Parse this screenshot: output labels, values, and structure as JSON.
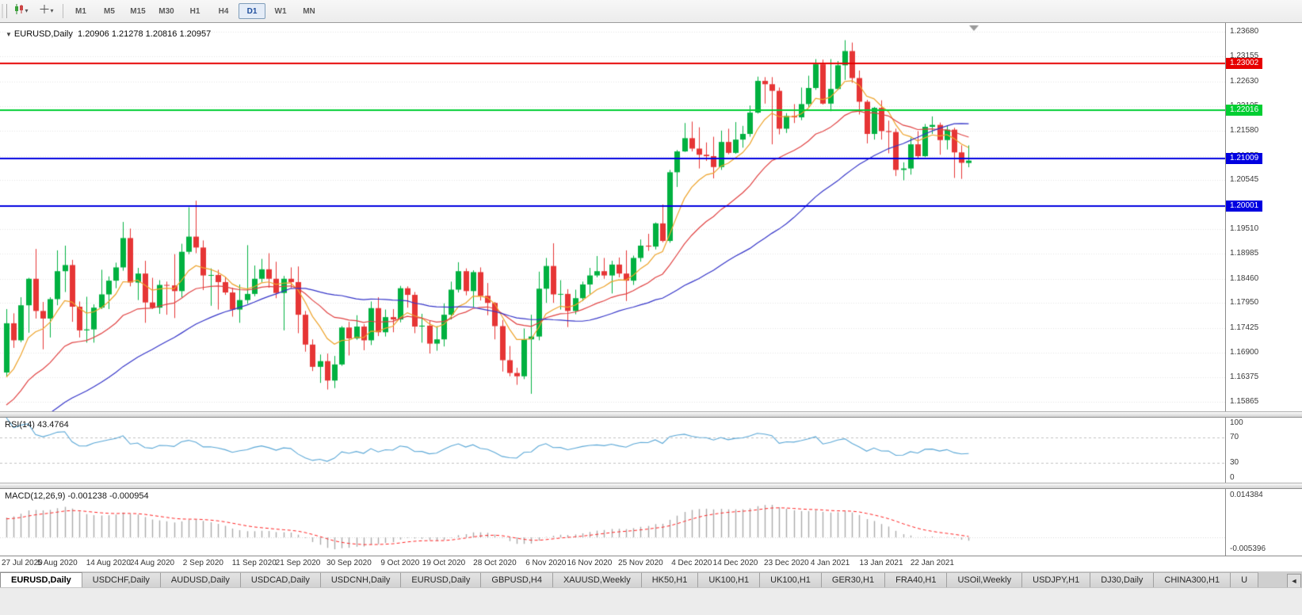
{
  "icons": {
    "title_marker": "▼",
    "dropdown_caret": "▾",
    "tab_scroll_left": "◄"
  },
  "toolbar": {
    "timeframes": [
      "M1",
      "M5",
      "M15",
      "M30",
      "H1",
      "H4",
      "D1",
      "W1",
      "MN"
    ],
    "active_timeframe": "D1"
  },
  "chart": {
    "title_symbol": "EURUSD,Daily",
    "title_ohlc": "1.20906 1.21278 1.20816 1.20957"
  },
  "chart_data": {
    "type": "candlestick",
    "symbol": "EURUSD",
    "timeframe": "Daily",
    "ohlc_readout": {
      "open": "1.20906",
      "high": "1.21278",
      "low": "1.20816",
      "close": "1.20957"
    },
    "y_range": [
      1.1566,
      1.2383
    ],
    "y_axis_ticks": [
      1.2368,
      1.23155,
      1.2263,
      1.22105,
      1.2158,
      1.21055,
      1.20545,
      1.2002,
      1.1951,
      1.18985,
      1.1846,
      1.1795,
      1.17425,
      1.169,
      1.16375,
      1.15865
    ],
    "x_tick_labels": [
      "27 Jul 2020",
      "5 Aug 2020",
      "14 Aug 2020",
      "24 Aug 2020",
      "2 Sep 2020",
      "11 Sep 2020",
      "21 Sep 2020",
      "30 Sep 2020",
      "9 Oct 2020",
      "19 Oct 2020",
      "28 Oct 2020",
      "6 Nov 2020",
      "16 Nov 2020",
      "25 Nov 2020",
      "4 Dec 2020",
      "14 Dec 2020",
      "23 Dec 2020",
      "4 Jan 2021",
      "13 Jan 2021",
      "22 Jan 2021"
    ],
    "x_tick_indices": [
      0,
      7,
      14,
      20,
      27,
      34,
      40,
      47,
      54,
      60,
      67,
      74,
      80,
      87,
      94,
      100,
      107,
      113,
      120,
      127
    ],
    "hlines": [
      {
        "price": 1.23002,
        "color": "#e60000"
      },
      {
        "price": 1.22016,
        "color": "#00ce32"
      },
      {
        "price": 1.21009,
        "color": "#0000e0"
      },
      {
        "price": 1.20001,
        "color": "#0000e0"
      }
    ],
    "moving_averages": [
      {
        "period": 8,
        "type": "ema",
        "color": "#eda229"
      },
      {
        "period": 21,
        "type": "ema",
        "color": "#e04040"
      },
      {
        "period": 40,
        "type": "sma",
        "color": "#3434c8"
      }
    ],
    "colors": {
      "up": "#00b140",
      "down": "#e63535",
      "grid": "#e4e4e4",
      "rsi_line": "#5aa7d6",
      "rsi_levels": "#c0c0c0",
      "macd_hist": "#ababab",
      "macd_signal": "#ff2222",
      "shift_marker": "#9a9a9a"
    },
    "indicators": {
      "rsi": {
        "name": "RSI(14)",
        "value": "43.4764",
        "period": 14,
        "levels": [
          100,
          70,
          30,
          0
        ]
      },
      "macd": {
        "name": "MACD(12,26,9)",
        "value": "-0.001238 -0.000954",
        "fast": 12,
        "slow": 26,
        "signal": 9,
        "axis_max": "0.014384",
        "axis_min": "-0.005396"
      }
    },
    "candles": [
      [
        1.1648,
        1.1782,
        1.164,
        1.1752
      ],
      [
        1.1752,
        1.1773,
        1.17,
        1.1716
      ],
      [
        1.1716,
        1.1807,
        1.1712,
        1.179
      ],
      [
        1.179,
        1.1848,
        1.1732,
        1.1846
      ],
      [
        1.1846,
        1.1909,
        1.1762,
        1.1778
      ],
      [
        1.1778,
        1.1797,
        1.1697,
        1.1762
      ],
      [
        1.1762,
        1.1807,
        1.1722,
        1.1803
      ],
      [
        1.1803,
        1.1906,
        1.179,
        1.1862
      ],
      [
        1.1862,
        1.1916,
        1.1818,
        1.1875
      ],
      [
        1.1875,
        1.1886,
        1.1755,
        1.1787
      ],
      [
        1.1787,
        1.1798,
        1.1722,
        1.1737
      ],
      [
        1.1737,
        1.1808,
        1.1711,
        1.1739
      ],
      [
        1.1739,
        1.1792,
        1.1711,
        1.1785
      ],
      [
        1.1785,
        1.1865,
        1.1782,
        1.1813
      ],
      [
        1.1813,
        1.1851,
        1.1782,
        1.1842
      ],
      [
        1.1842,
        1.188,
        1.1826,
        1.187
      ],
      [
        1.187,
        1.1966,
        1.1863,
        1.1932
      ],
      [
        1.1932,
        1.1952,
        1.183,
        1.1838
      ],
      [
        1.1838,
        1.1869,
        1.1801,
        1.1857
      ],
      [
        1.1857,
        1.1884,
        1.1753,
        1.1796
      ],
      [
        1.1796,
        1.1848,
        1.1782,
        1.1785
      ],
      [
        1.1785,
        1.1843,
        1.1772,
        1.1833
      ],
      [
        1.1833,
        1.184,
        1.177,
        1.1832
      ],
      [
        1.1832,
        1.1898,
        1.1763,
        1.182
      ],
      [
        1.182,
        1.192,
        1.1807,
        1.1903
      ],
      [
        1.1903,
        1.1997,
        1.1898,
        1.1935
      ],
      [
        1.1935,
        1.2011,
        1.19,
        1.1912
      ],
      [
        1.1912,
        1.1927,
        1.1822,
        1.1853
      ],
      [
        1.1853,
        1.1868,
        1.1789,
        1.1854
      ],
      [
        1.1854,
        1.1865,
        1.1781,
        1.1839
      ],
      [
        1.1839,
        1.1849,
        1.1812,
        1.1817
      ],
      [
        1.1817,
        1.1827,
        1.1766,
        1.1781
      ],
      [
        1.1781,
        1.1834,
        1.1753,
        1.1801
      ],
      [
        1.1801,
        1.1917,
        1.1793,
        1.1814
      ],
      [
        1.1814,
        1.1874,
        1.1809,
        1.1846
      ],
      [
        1.1846,
        1.1888,
        1.1839,
        1.1866
      ],
      [
        1.1866,
        1.19,
        1.1827,
        1.1846
      ],
      [
        1.1846,
        1.1882,
        1.1805,
        1.1816
      ],
      [
        1.1816,
        1.1852,
        1.1737,
        1.1846
      ],
      [
        1.1846,
        1.187,
        1.1826,
        1.1839
      ],
      [
        1.1839,
        1.1872,
        1.1731,
        1.177
      ],
      [
        1.177,
        1.1778,
        1.1692,
        1.1707
      ],
      [
        1.1707,
        1.1718,
        1.1651,
        1.166
      ],
      [
        1.166,
        1.1686,
        1.1626,
        1.1672
      ],
      [
        1.1672,
        1.1688,
        1.1612,
        1.1631
      ],
      [
        1.1631,
        1.1683,
        1.1615,
        1.1665
      ],
      [
        1.1665,
        1.1746,
        1.1662,
        1.1743
      ],
      [
        1.1743,
        1.1755,
        1.1684,
        1.172
      ],
      [
        1.172,
        1.1769,
        1.1717,
        1.1745
      ],
      [
        1.1745,
        1.175,
        1.1695,
        1.1716
      ],
      [
        1.1716,
        1.1798,
        1.1706,
        1.1784
      ],
      [
        1.1784,
        1.1807,
        1.1725,
        1.1733
      ],
      [
        1.1733,
        1.1781,
        1.1724,
        1.1765
      ],
      [
        1.1765,
        1.1782,
        1.1733,
        1.176
      ],
      [
        1.176,
        1.1831,
        1.1754,
        1.1826
      ],
      [
        1.1826,
        1.183,
        1.1785,
        1.1812
      ],
      [
        1.1812,
        1.1818,
        1.1731,
        1.1745
      ],
      [
        1.1745,
        1.1772,
        1.1711,
        1.1747
      ],
      [
        1.1747,
        1.1758,
        1.1688,
        1.1709
      ],
      [
        1.1709,
        1.1746,
        1.1694,
        1.1718
      ],
      [
        1.1718,
        1.1794,
        1.1703,
        1.177
      ],
      [
        1.177,
        1.184,
        1.176,
        1.1823
      ],
      [
        1.1823,
        1.1881,
        1.1817,
        1.1862
      ],
      [
        1.1862,
        1.1868,
        1.1811,
        1.182
      ],
      [
        1.182,
        1.1864,
        1.1786,
        1.186
      ],
      [
        1.186,
        1.187,
        1.18,
        1.181
      ],
      [
        1.181,
        1.1837,
        1.1769,
        1.1795
      ],
      [
        1.1795,
        1.1797,
        1.1718,
        1.1746
      ],
      [
        1.1746,
        1.1759,
        1.165,
        1.1674
      ],
      [
        1.1674,
        1.1704,
        1.164,
        1.1647
      ],
      [
        1.1647,
        1.1658,
        1.1622,
        1.164
      ],
      [
        1.164,
        1.1741,
        1.1634,
        1.1718
      ],
      [
        1.1718,
        1.177,
        1.1603,
        1.1724
      ],
      [
        1.1724,
        1.1861,
        1.1716,
        1.1825
      ],
      [
        1.1825,
        1.189,
        1.1795,
        1.1873
      ],
      [
        1.1873,
        1.1921,
        1.1795,
        1.1813
      ],
      [
        1.1813,
        1.1843,
        1.1781,
        1.1814
      ],
      [
        1.1814,
        1.1824,
        1.1744,
        1.1778
      ],
      [
        1.1778,
        1.1823,
        1.1771,
        1.1805
      ],
      [
        1.1805,
        1.184,
        1.1799,
        1.1834
      ],
      [
        1.1834,
        1.1869,
        1.1814,
        1.1853
      ],
      [
        1.1853,
        1.1894,
        1.1849,
        1.1862
      ],
      [
        1.1862,
        1.189,
        1.1846,
        1.1853
      ],
      [
        1.1853,
        1.1884,
        1.1815,
        1.1876
      ],
      [
        1.1876,
        1.1891,
        1.1849,
        1.1857
      ],
      [
        1.1857,
        1.1906,
        1.1799,
        1.1842
      ],
      [
        1.1842,
        1.1895,
        1.1833,
        1.189
      ],
      [
        1.189,
        1.1929,
        1.1882,
        1.1916
      ],
      [
        1.1916,
        1.1941,
        1.1905,
        1.1914
      ],
      [
        1.1914,
        1.1965,
        1.1908,
        1.1963
      ],
      [
        1.1963,
        1.2003,
        1.1923,
        1.1926
      ],
      [
        1.1926,
        1.2076,
        1.1922,
        1.2071
      ],
      [
        1.2071,
        1.2118,
        1.204,
        1.2115
      ],
      [
        1.2115,
        1.2175,
        1.2114,
        1.2143
      ],
      [
        1.2143,
        1.2178,
        1.2115,
        1.2121
      ],
      [
        1.2121,
        1.2166,
        1.2079,
        1.2108
      ],
      [
        1.2108,
        1.2134,
        1.2095,
        1.2105
      ],
      [
        1.2105,
        1.2146,
        1.2058,
        1.2082
      ],
      [
        1.2082,
        1.2159,
        1.2076,
        1.2135
      ],
      [
        1.2135,
        1.2163,
        1.2109,
        1.2112
      ],
      [
        1.2112,
        1.2177,
        1.211,
        1.214
      ],
      [
        1.214,
        1.2169,
        1.2123,
        1.2152
      ],
      [
        1.2152,
        1.2212,
        1.2146,
        1.2197
      ],
      [
        1.2197,
        1.2273,
        1.2195,
        1.2264
      ],
      [
        1.2264,
        1.2272,
        1.2216,
        1.2257
      ],
      [
        1.2257,
        1.2272,
        1.213,
        1.2243
      ],
      [
        1.2243,
        1.225,
        1.2151,
        1.2163
      ],
      [
        1.2163,
        1.2196,
        1.2154,
        1.219
      ],
      [
        1.219,
        1.2215,
        1.2175,
        1.2187
      ],
      [
        1.2187,
        1.225,
        1.2181,
        1.2215
      ],
      [
        1.2215,
        1.2275,
        1.2209,
        1.2249
      ],
      [
        1.2249,
        1.231,
        1.2245,
        1.2299
      ],
      [
        1.2299,
        1.2309,
        1.2214,
        1.2216
      ],
      [
        1.2216,
        1.231,
        1.22,
        1.2247
      ],
      [
        1.2247,
        1.2306,
        1.2245,
        1.2297
      ],
      [
        1.2297,
        1.235,
        1.2266,
        1.2327
      ],
      [
        1.2327,
        1.2345,
        1.226,
        1.227
      ],
      [
        1.227,
        1.2286,
        1.2193,
        1.222
      ],
      [
        1.222,
        1.2224,
        1.2132,
        1.2152
      ],
      [
        1.2152,
        1.2209,
        1.214,
        1.2207
      ],
      [
        1.2207,
        1.2223,
        1.214,
        1.2158
      ],
      [
        1.2158,
        1.218,
        1.2111,
        1.2156
      ],
      [
        1.2156,
        1.2163,
        1.2063,
        1.2076
      ],
      [
        1.2076,
        1.2092,
        1.2054,
        1.2079
      ],
      [
        1.2079,
        1.2144,
        1.2066,
        1.213
      ],
      [
        1.213,
        1.2158,
        1.2101,
        1.2105
      ],
      [
        1.2105,
        1.2173,
        1.2103,
        1.2167
      ],
      [
        1.2167,
        1.2189,
        1.2152,
        1.2171
      ],
      [
        1.2171,
        1.2176,
        1.2108,
        1.2139
      ],
      [
        1.2139,
        1.217,
        1.2119,
        1.2161
      ],
      [
        1.2161,
        1.2165,
        1.2059,
        1.2113
      ],
      [
        1.2113,
        1.2128,
        1.2057,
        1.2091
      ],
      [
        1.20906,
        1.21278,
        1.20816,
        1.20957
      ]
    ]
  },
  "tab_bar": {
    "active_index": 0,
    "tabs": [
      "EURUSD,Daily",
      "USDCHF,Daily",
      "AUDUSD,Daily",
      "USDCAD,Daily",
      "USDCNH,Daily",
      "EURUSD,Daily",
      "GBPUSD,H4",
      "XAUUSD,Weekly",
      "HK50,H1",
      "UK100,H1",
      "UK100,H1",
      "GER30,H1",
      "FRA40,H1",
      "USOil,Weekly",
      "USDJPY,H1",
      "DJ30,Daily",
      "CHINA300,H1",
      "U"
    ]
  }
}
